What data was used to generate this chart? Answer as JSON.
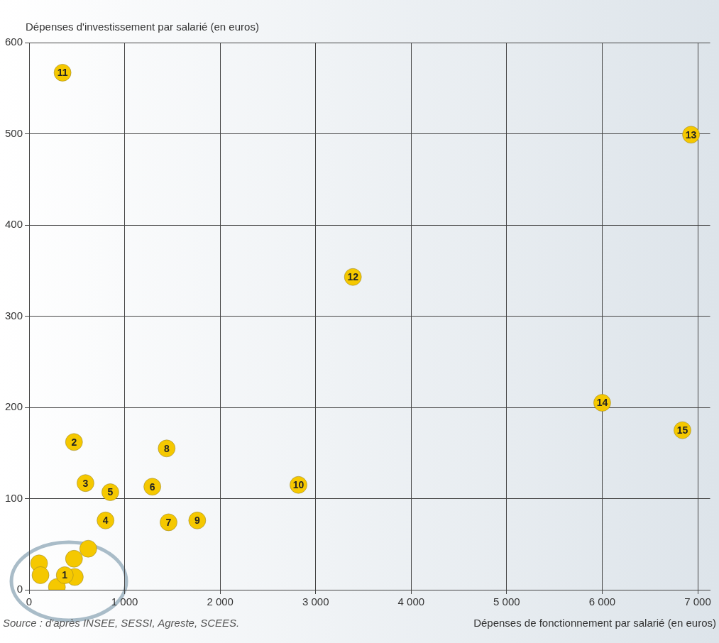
{
  "chart_data": {
    "type": "scatter",
    "xlabel": "Dépenses de fonctionnement par salarié (en euros)",
    "ylabel": "Dépenses d'investissement par salarié (en euros)",
    "annotations": [
      "Source : d'après INSEE, SESSI, Agreste, SCEES.",
      {
        "text": "1",
        "x": 373,
        "y": 16
      },
      {
        "text": "2",
        "x": 470,
        "y": 162
      },
      {
        "text": "3",
        "x": 590,
        "y": 117
      },
      {
        "text": "4",
        "x": 800,
        "y": 76
      },
      {
        "text": "5",
        "x": 850,
        "y": 107
      },
      {
        "text": "6",
        "x": 1290,
        "y": 113
      },
      {
        "text": "7",
        "x": 1460,
        "y": 74
      },
      {
        "text": "8",
        "x": 1440,
        "y": 155
      },
      {
        "text": "9",
        "x": 1760,
        "y": 76
      },
      {
        "text": "10",
        "x": 2820,
        "y": 115
      },
      {
        "text": "11",
        "x": 350,
        "y": 567
      },
      {
        "text": "12",
        "x": 3390,
        "y": 343
      },
      {
        "text": "13",
        "x": 6930,
        "y": 499
      },
      {
        "text": "14",
        "x": 6000,
        "y": 205
      },
      {
        "text": "15",
        "x": 6840,
        "y": 175
      }
    ],
    "series": [
      {
        "color": "#f5c800",
        "x": [
          104,
          119,
          291,
          470,
          619,
          478,
          373,
          470,
          590,
          800,
          850,
          1290,
          1460,
          1440,
          1760,
          2820,
          350,
          3390,
          6930,
          6000,
          6840
        ],
        "values": [
          29,
          16,
          3,
          34,
          45,
          14,
          16,
          162,
          117,
          76,
          107,
          113,
          74,
          155,
          76,
          115,
          567,
          343,
          499,
          205,
          175
        ]
      }
    ],
    "xlim": [
      0,
      7130
    ],
    "ylim": [
      0,
      600
    ],
    "xticks": [
      0,
      {
        "value": 1000,
        "label": "1 000"
      },
      {
        "value": 2000,
        "label": "2 000"
      },
      {
        "value": 3000,
        "label": "3 000"
      },
      {
        "value": 4000,
        "label": "4 000"
      },
      {
        "value": 5000,
        "label": "5 000"
      },
      {
        "value": 6000,
        "label": "6 000"
      },
      {
        "value": 7000,
        "label": "7 000"
      }
    ],
    "yticks": [
      0,
      100,
      200,
      300,
      400,
      500,
      600
    ],
    "grid": true,
    "marker": "circle"
  }
}
